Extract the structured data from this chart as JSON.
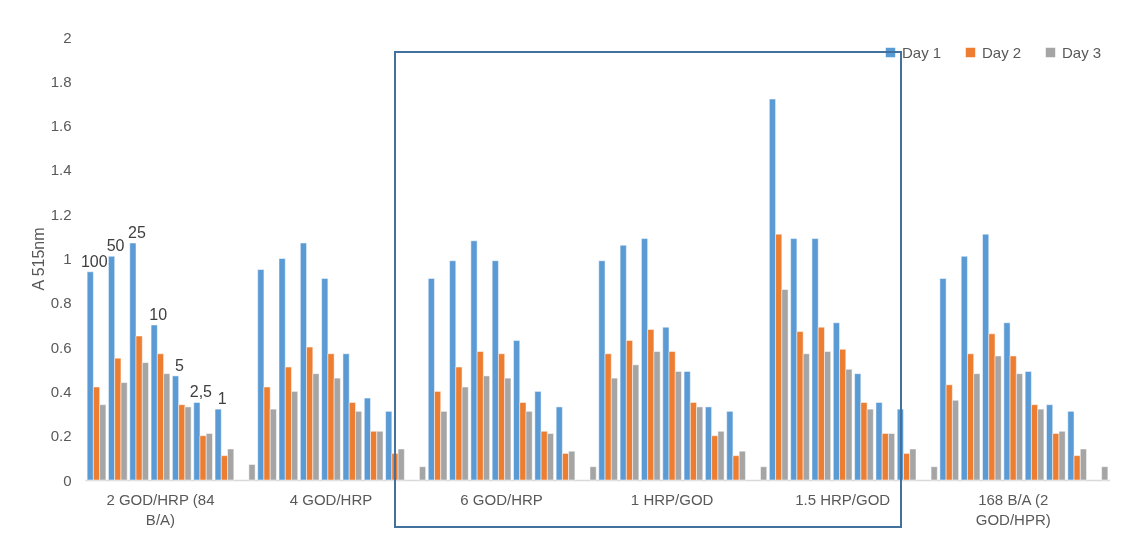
{
  "chart_data": {
    "type": "bar",
    "ylabel": "A 515nm",
    "categories": [
      null,
      null,
      null,
      "2 GOD/HRP (84 B/A)",
      null,
      null,
      null,
      null,
      null,
      null,
      null,
      "4 GOD/HRP",
      null,
      null,
      null,
      null,
      null,
      null,
      null,
      "6 GOD/HRP",
      null,
      null,
      null,
      null,
      null,
      null,
      null,
      "1 HRP/GOD",
      null,
      null,
      null,
      null,
      null,
      null,
      null,
      "1.5 HRP/GOD",
      null,
      null,
      null,
      null,
      null,
      null,
      null,
      "168 B/A (2 GOD/HPR)",
      null,
      null,
      null,
      null
    ],
    "series": [
      {
        "name": "Day 1",
        "color": "#5b9bd5",
        "values": [
          0.94,
          1.01,
          1.07,
          0.7,
          0.47,
          0.35,
          0.32,
          null,
          0.95,
          1.0,
          1.07,
          0.91,
          0.57,
          0.37,
          0.31,
          null,
          0.91,
          0.99,
          1.08,
          0.99,
          0.63,
          0.4,
          0.33,
          null,
          0.99,
          1.06,
          1.09,
          0.69,
          0.49,
          0.33,
          0.31,
          null,
          1.72,
          1.09,
          1.09,
          0.71,
          0.48,
          0.35,
          0.32,
          null,
          0.91,
          1.01,
          1.11,
          0.71,
          0.49,
          0.34,
          0.31,
          null
        ]
      },
      {
        "name": "Day 2",
        "color": "#ed7d31",
        "values": [
          0.42,
          0.55,
          0.65,
          0.57,
          0.34,
          0.2,
          0.11,
          null,
          0.42,
          0.51,
          0.6,
          0.57,
          0.35,
          0.22,
          0.12,
          null,
          0.4,
          0.51,
          0.58,
          0.57,
          0.35,
          0.22,
          0.12,
          null,
          0.57,
          0.63,
          0.68,
          0.58,
          0.35,
          0.2,
          0.11,
          null,
          1.11,
          0.67,
          0.69,
          0.59,
          0.35,
          0.21,
          0.12,
          null,
          0.43,
          0.57,
          0.66,
          0.56,
          0.34,
          0.21,
          0.11,
          null
        ]
      },
      {
        "name": "Day 3",
        "color": "#a5a5a5",
        "values": [
          0.34,
          0.44,
          0.53,
          0.48,
          0.33,
          0.21,
          0.14,
          0.07,
          0.32,
          0.4,
          0.48,
          0.46,
          0.31,
          0.22,
          0.14,
          0.06,
          0.31,
          0.42,
          0.47,
          0.46,
          0.31,
          0.21,
          0.13,
          0.06,
          0.46,
          0.52,
          0.58,
          0.49,
          0.33,
          0.22,
          0.13,
          0.06,
          0.86,
          0.57,
          0.58,
          0.5,
          0.32,
          0.21,
          0.14,
          0.06,
          0.36,
          0.48,
          0.56,
          0.48,
          0.32,
          0.22,
          0.14,
          0.06
        ]
      }
    ],
    "annotations": [
      "100",
      "50",
      "25",
      "10",
      "5",
      "2,5",
      "1"
    ],
    "ylim": [
      0,
      2
    ],
    "yticks": [
      0,
      0.2,
      0.4,
      0.6,
      0.8,
      1,
      1.2,
      1.4,
      1.6,
      1.8,
      2
    ],
    "grid": false,
    "legend": "top right"
  }
}
